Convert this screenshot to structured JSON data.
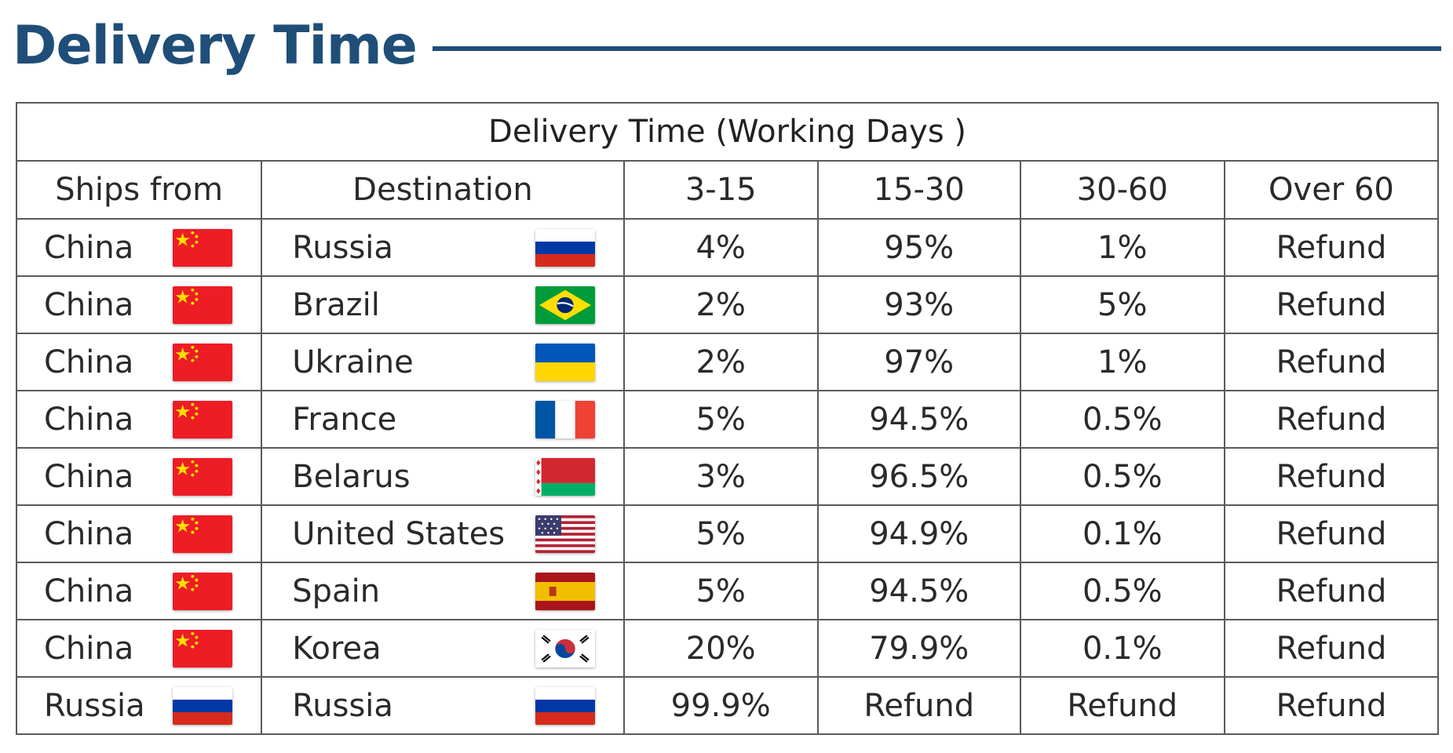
{
  "header": {
    "title": "Delivery Time"
  },
  "table": {
    "caption": "Delivery Time (Working Days )",
    "columns": [
      "Ships from",
      "Destination",
      "3-15",
      "15-30",
      "30-60",
      "Over 60"
    ],
    "rows": [
      {
        "from": "China",
        "from_flag": "china-flag-icon",
        "dest": "Russia",
        "dest_flag": "russia-flag-icon",
        "d3_15": "4%",
        "d15_30": "95%",
        "d30_60": "1%",
        "over60": "Refund"
      },
      {
        "from": "China",
        "from_flag": "china-flag-icon",
        "dest": "Brazil",
        "dest_flag": "brazil-flag-icon",
        "d3_15": "2%",
        "d15_30": "93%",
        "d30_60": "5%",
        "over60": "Refund"
      },
      {
        "from": "China",
        "from_flag": "china-flag-icon",
        "dest": "Ukraine",
        "dest_flag": "ukraine-flag-icon",
        "d3_15": "2%",
        "d15_30": "97%",
        "d30_60": "1%",
        "over60": "Refund"
      },
      {
        "from": "China",
        "from_flag": "china-flag-icon",
        "dest": "France",
        "dest_flag": "france-flag-icon",
        "d3_15": "5%",
        "d15_30": "94.5%",
        "d30_60": "0.5%",
        "over60": "Refund"
      },
      {
        "from": "China",
        "from_flag": "china-flag-icon",
        "dest": "Belarus",
        "dest_flag": "belarus-flag-icon",
        "d3_15": "3%",
        "d15_30": "96.5%",
        "d30_60": "0.5%",
        "over60": "Refund"
      },
      {
        "from": "China",
        "from_flag": "china-flag-icon",
        "dest": "United States",
        "dest_flag": "usa-flag-icon",
        "d3_15": "5%",
        "d15_30": "94.9%",
        "d30_60": "0.1%",
        "over60": "Refund"
      },
      {
        "from": "China",
        "from_flag": "china-flag-icon",
        "dest": "Spain",
        "dest_flag": "spain-flag-icon",
        "d3_15": "5%",
        "d15_30": "94.5%",
        "d30_60": "0.5%",
        "over60": "Refund"
      },
      {
        "from": "China",
        "from_flag": "china-flag-icon",
        "dest": "Korea",
        "dest_flag": "korea-flag-icon",
        "d3_15": "20%",
        "d15_30": "79.9%",
        "d30_60": "0.1%",
        "over60": "Refund"
      },
      {
        "from": "Russia",
        "from_flag": "russia-flag-icon",
        "dest": "Russia",
        "dest_flag": "russia-flag-icon",
        "d3_15": "99.9%",
        "d15_30": "Refund",
        "d30_60": "Refund",
        "over60": "Refund"
      }
    ]
  },
  "colors": {
    "title": "#1f4e79",
    "border": "#5a5a5a",
    "text": "#2a2a2a"
  }
}
